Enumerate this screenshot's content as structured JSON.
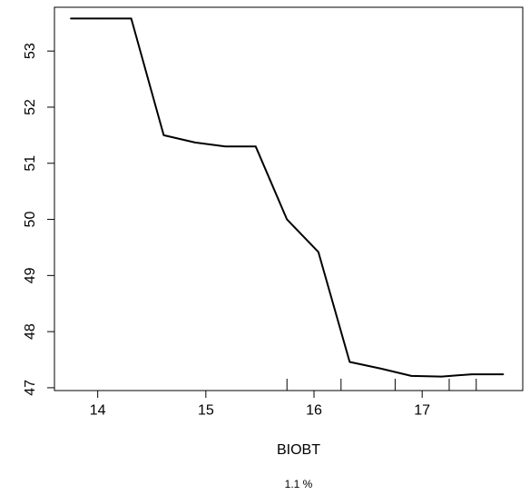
{
  "chart_data": {
    "type": "line",
    "xlabel": "BIOBT",
    "subtitle": "1.1 %",
    "ylabel": "",
    "xlim": [
      13.6,
      17.93
    ],
    "ylim": [
      46.95,
      53.78
    ],
    "x_ticks": [
      14,
      15,
      16,
      17
    ],
    "y_ticks": [
      47,
      48,
      49,
      50,
      51,
      52,
      53
    ],
    "grid": false,
    "series": [
      {
        "x": [
          13.75,
          14.02,
          14.31,
          14.61,
          14.9,
          15.18,
          15.46,
          15.75,
          16.04,
          16.33,
          16.62,
          16.9,
          17.18,
          17.46,
          17.75
        ],
        "y": [
          53.58,
          53.58,
          53.58,
          51.5,
          51.37,
          51.3,
          51.3,
          50.0,
          49.42,
          47.46,
          47.34,
          47.21,
          47.2,
          47.24,
          47.24
        ]
      }
    ],
    "rug": [
      15.75,
      16.25,
      16.75,
      17.25,
      17.5
    ],
    "color": "#000000"
  }
}
